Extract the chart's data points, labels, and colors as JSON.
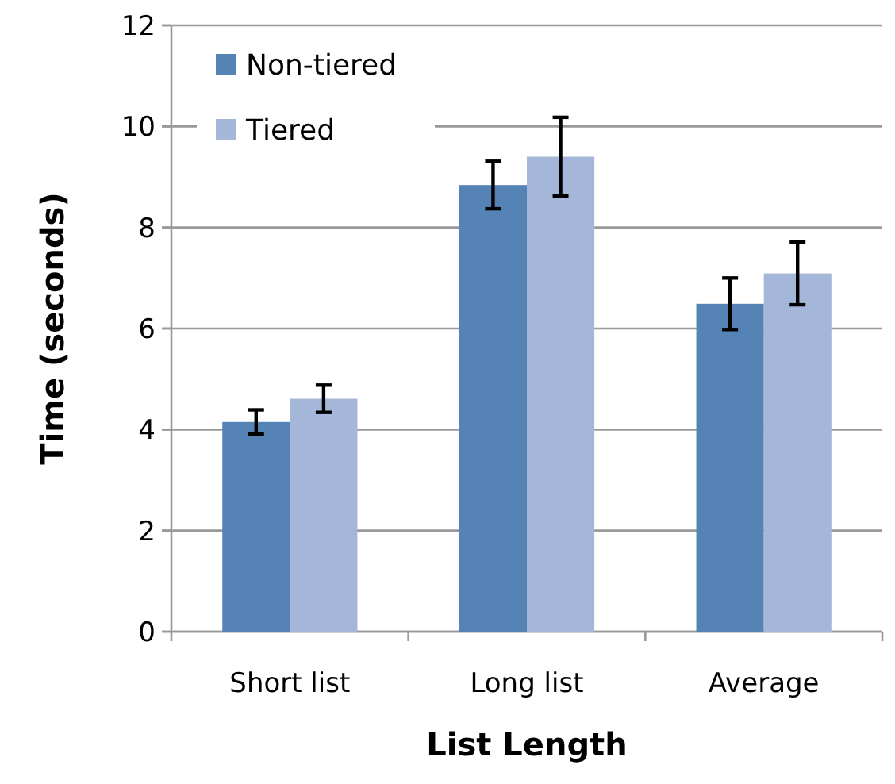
{
  "chart_data": {
    "type": "bar",
    "xlabel": "List Length",
    "ylabel": "Time (seconds)",
    "categories": [
      "Short list",
      "Long list",
      "Average"
    ],
    "series": [
      {
        "name": "Non-tiered",
        "color": "#5583b6",
        "values": [
          4.15,
          8.84,
          6.49
        ],
        "errors": [
          0.24,
          0.47,
          0.51
        ]
      },
      {
        "name": "Tiered",
        "color": "#a4b7d8",
        "values": [
          4.61,
          9.4,
          7.09
        ],
        "errors": [
          0.27,
          0.78,
          0.62
        ]
      }
    ],
    "ylim": [
      0,
      12
    ],
    "yticks": [
      0,
      2,
      4,
      6,
      8,
      10,
      12
    ],
    "grid": "y",
    "legend": "top left"
  }
}
